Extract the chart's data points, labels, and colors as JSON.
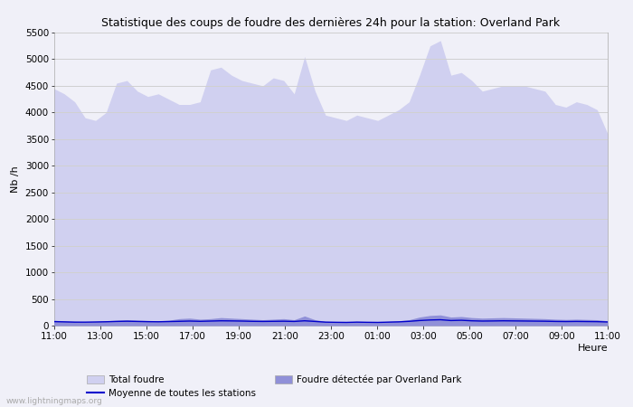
{
  "title": "Statistique des coups de foudre des dernières 24h pour la station: Overland Park",
  "xlabel": "Heure",
  "ylabel": "Nb /h",
  "watermark": "www.lightningmaps.org",
  "yticks": [
    0,
    500,
    1000,
    1500,
    2000,
    2500,
    3000,
    3500,
    4000,
    4500,
    5000,
    5500
  ],
  "ylim": [
    0,
    5500
  ],
  "xtick_labels": [
    "11:00",
    "13:00",
    "15:00",
    "17:00",
    "19:00",
    "21:00",
    "23:00",
    "01:00",
    "03:00",
    "05:00",
    "07:00",
    "09:00",
    "11:00"
  ],
  "bg_color": "#f0f0f8",
  "plot_bg_color": "#f0f0f8",
  "grid_color": "#d0d0d0",
  "fill_total_color": "#d0d0f0",
  "fill_detected_color": "#9090d8",
  "line_color": "#0000cc",
  "total_foudre": [
    4450,
    4350,
    4200,
    3900,
    3850,
    4000,
    4550,
    4600,
    4400,
    4300,
    4350,
    4250,
    4150,
    4150,
    4200,
    4800,
    4850,
    4700,
    4600,
    4550,
    4500,
    4650,
    4600,
    4350,
    5050,
    4400,
    3950,
    3900,
    3850,
    3950,
    3900,
    3850,
    3950,
    4050,
    4200,
    4700,
    5250,
    5350,
    4700,
    4750,
    4600,
    4400,
    4450,
    4500,
    4500,
    4500,
    4450,
    4400,
    4150,
    4100,
    4200,
    4150,
    4050,
    3600
  ],
  "detected_foudre": [
    100,
    90,
    80,
    75,
    80,
    90,
    100,
    110,
    100,
    95,
    90,
    100,
    130,
    140,
    120,
    130,
    150,
    140,
    130,
    120,
    110,
    120,
    130,
    110,
    180,
    110,
    80,
    75,
    70,
    80,
    75,
    70,
    80,
    90,
    110,
    160,
    190,
    200,
    160,
    170,
    150,
    140,
    145,
    150,
    145,
    140,
    135,
    130,
    120,
    115,
    120,
    115,
    110,
    90
  ],
  "moyenne": [
    75,
    70,
    65,
    65,
    68,
    72,
    78,
    82,
    78,
    74,
    72,
    76,
    80,
    85,
    80,
    85,
    90,
    88,
    85,
    80,
    78,
    80,
    82,
    78,
    90,
    78,
    65,
    62,
    60,
    65,
    62,
    60,
    65,
    70,
    80,
    95,
    105,
    110,
    95,
    100,
    90,
    85,
    87,
    90,
    88,
    86,
    84,
    82,
    78,
    76,
    78,
    76,
    74,
    68
  ],
  "n_points": 54
}
